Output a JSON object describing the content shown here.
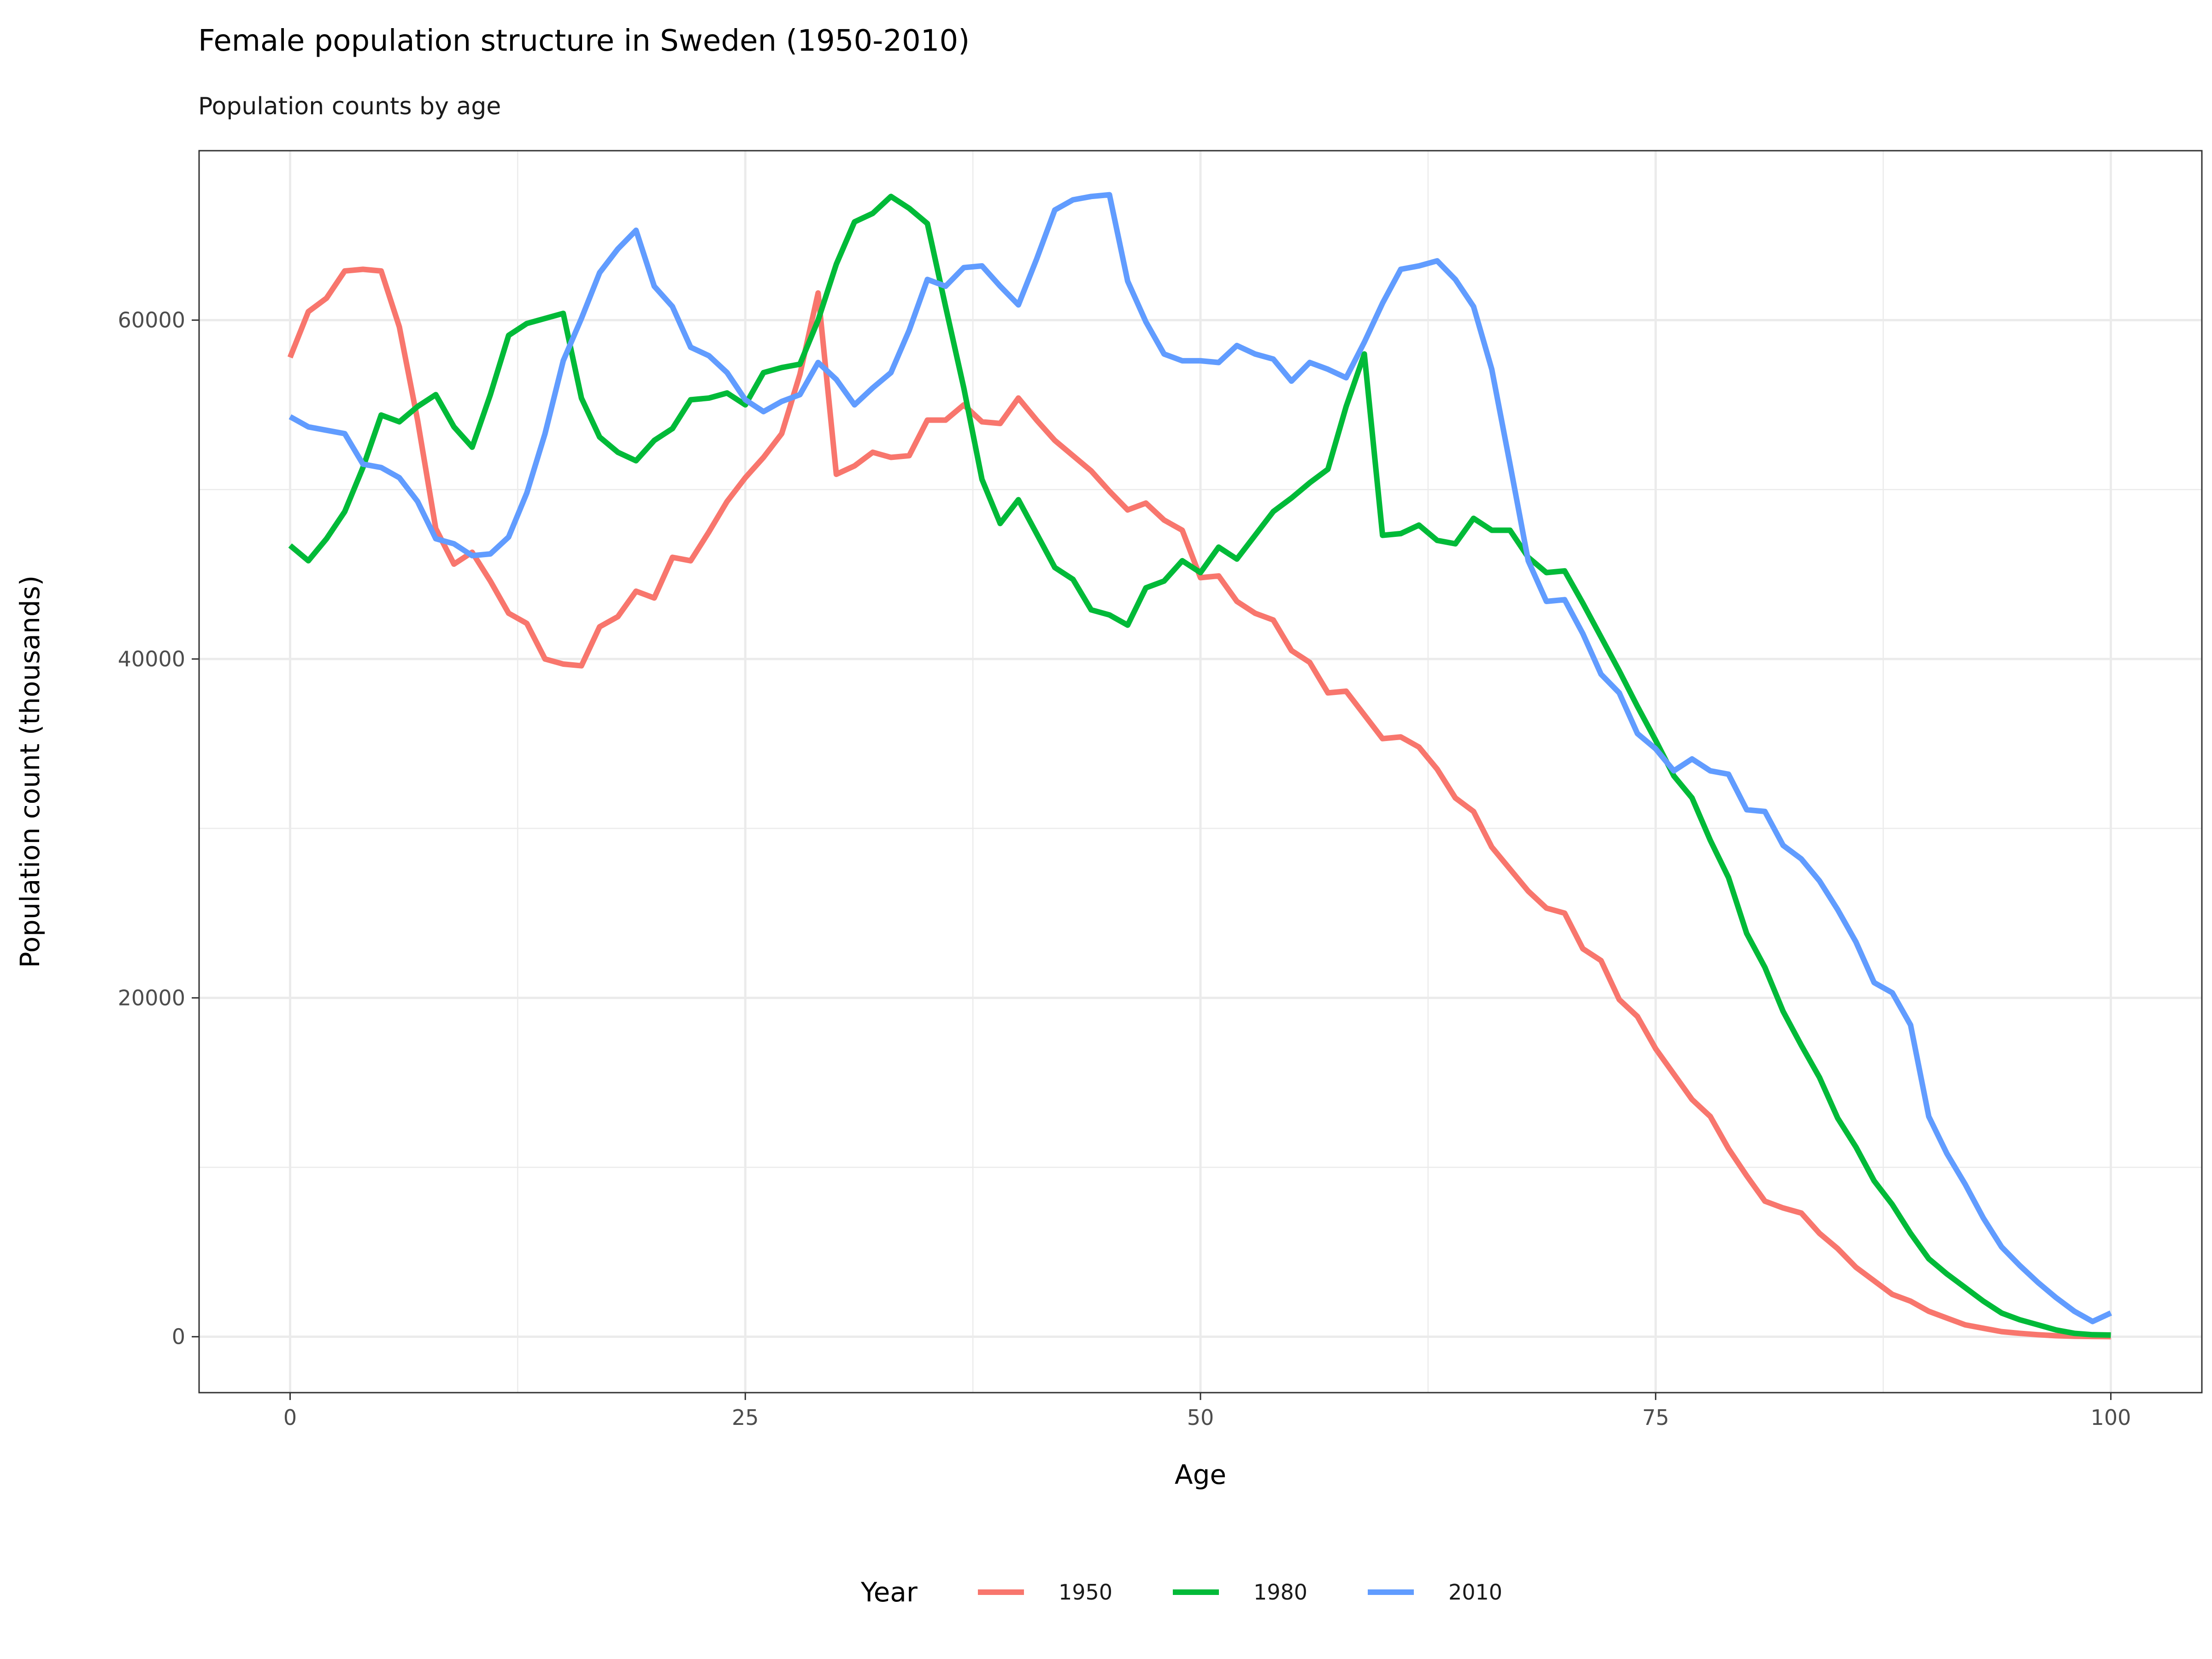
{
  "chart_data": {
    "type": "line",
    "title": "Female population structure in Sweden (1950-2010)",
    "subtitle": "Population counts by age",
    "xlabel": "Age",
    "ylabel": "Population count (thousands)",
    "xlim": [
      -5,
      105
    ],
    "ylim": [
      -3300,
      70000
    ],
    "x_ticks": [
      0,
      25,
      50,
      75,
      100
    ],
    "y_ticks": [
      0,
      20000,
      40000,
      60000
    ],
    "x_tick_labels": [
      "0",
      "25",
      "50",
      "75",
      "100"
    ],
    "y_tick_labels": [
      "0",
      "20000",
      "40000",
      "60000"
    ],
    "grid": true,
    "legend": {
      "title": "Year",
      "position": "bottom"
    },
    "x": [
      0,
      1,
      2,
      3,
      4,
      5,
      6,
      7,
      8,
      9,
      10,
      11,
      12,
      13,
      14,
      15,
      16,
      17,
      18,
      19,
      20,
      21,
      22,
      23,
      24,
      25,
      26,
      27,
      28,
      29,
      30,
      31,
      32,
      33,
      34,
      35,
      36,
      37,
      38,
      39,
      40,
      41,
      42,
      43,
      44,
      45,
      46,
      47,
      48,
      49,
      50,
      51,
      52,
      53,
      54,
      55,
      56,
      57,
      58,
      59,
      60,
      61,
      62,
      63,
      64,
      65,
      66,
      67,
      68,
      69,
      70,
      71,
      72,
      73,
      74,
      75,
      76,
      77,
      78,
      79,
      80,
      81,
      82,
      83,
      84,
      85,
      86,
      87,
      88,
      89,
      90,
      91,
      92,
      93,
      94,
      95,
      96,
      97,
      98,
      99,
      100
    ],
    "series": [
      {
        "name": "1950",
        "color": "#F8766D",
        "values": [
          57800,
          60500,
          61300,
          62900,
          63000,
          62900,
          59600,
          54100,
          47700,
          45600,
          46300,
          44600,
          42700,
          42100,
          40000,
          39700,
          39600,
          41900,
          42500,
          44000,
          43600,
          46000,
          45800,
          47500,
          49300,
          50700,
          51900,
          53300,
          56800,
          61600,
          50900,
          51400,
          52200,
          51900,
          52000,
          54100,
          54100,
          55000,
          54000,
          53900,
          55400,
          54100,
          52900,
          52000,
          51100,
          49900,
          48800,
          49200,
          48200,
          47600,
          44800,
          44900,
          43400,
          42700,
          42300,
          40500,
          39800,
          38000,
          38100,
          36700,
          35300,
          35400,
          34800,
          33500,
          31800,
          31000,
          28900,
          27600,
          26300,
          25300,
          25000,
          22900,
          22200,
          19900,
          18900,
          17000,
          15500,
          14000,
          13000,
          11100,
          9500,
          8000,
          7600,
          7300,
          6100,
          5200,
          4100,
          3300,
          2500,
          2100,
          1500,
          1100,
          700,
          500,
          300,
          200,
          120,
          60,
          30,
          15,
          5
        ]
      },
      {
        "name": "1980",
        "color": "#00BA38",
        "values": [
          46700,
          45800,
          47100,
          48700,
          51300,
          54400,
          54000,
          54900,
          55600,
          53700,
          52500,
          55600,
          59100,
          59800,
          60100,
          60400,
          55400,
          53100,
          52200,
          51700,
          52900,
          53600,
          55300,
          55400,
          55700,
          55000,
          56900,
          57200,
          57400,
          60000,
          63300,
          65800,
          66300,
          67300,
          66600,
          65700,
          60800,
          56000,
          50600,
          48000,
          49400,
          47400,
          45400,
          44700,
          42900,
          42600,
          42000,
          44200,
          44600,
          45800,
          45100,
          46600,
          45900,
          47300,
          48700,
          49500,
          50400,
          51200,
          54900,
          58000,
          47300,
          47400,
          47900,
          47000,
          46800,
          48300,
          47600,
          47600,
          46000,
          45100,
          45200,
          43300,
          41300,
          39300,
          37200,
          35200,
          33100,
          31800,
          29300,
          27100,
          23800,
          21800,
          19200,
          17200,
          15300,
          12900,
          11200,
          9200,
          7800,
          6100,
          4600,
          3700,
          2900,
          2100,
          1400,
          1000,
          700,
          400,
          200,
          120,
          100
        ]
      },
      {
        "name": "2010",
        "color": "#619CFF",
        "values": [
          54300,
          53700,
          53500,
          53300,
          51500,
          51300,
          50700,
          49300,
          47100,
          46800,
          46100,
          46200,
          47200,
          49800,
          53300,
          57600,
          60100,
          62800,
          64200,
          65300,
          62000,
          60800,
          58400,
          57900,
          56900,
          55300,
          54600,
          55200,
          55600,
          57500,
          56500,
          55000,
          56000,
          56900,
          59400,
          62400,
          62000,
          63100,
          63200,
          62000,
          60900,
          63600,
          66500,
          67100,
          67300,
          67400,
          62300,
          59900,
          58000,
          57600,
          57600,
          57500,
          58500,
          58000,
          57700,
          56400,
          57500,
          57100,
          56600,
          58700,
          61000,
          63000,
          63200,
          63500,
          62400,
          60800,
          57100,
          51500,
          45800,
          43400,
          43500,
          41500,
          39100,
          38000,
          35600,
          34700,
          33400,
          34100,
          33400,
          33200,
          31100,
          31000,
          29000,
          28200,
          26900,
          25200,
          23300,
          20900,
          20300,
          18400,
          13000,
          10800,
          9000,
          7000,
          5300,
          4200,
          3200,
          2300,
          1500,
          900,
          1400
        ]
      }
    ]
  }
}
